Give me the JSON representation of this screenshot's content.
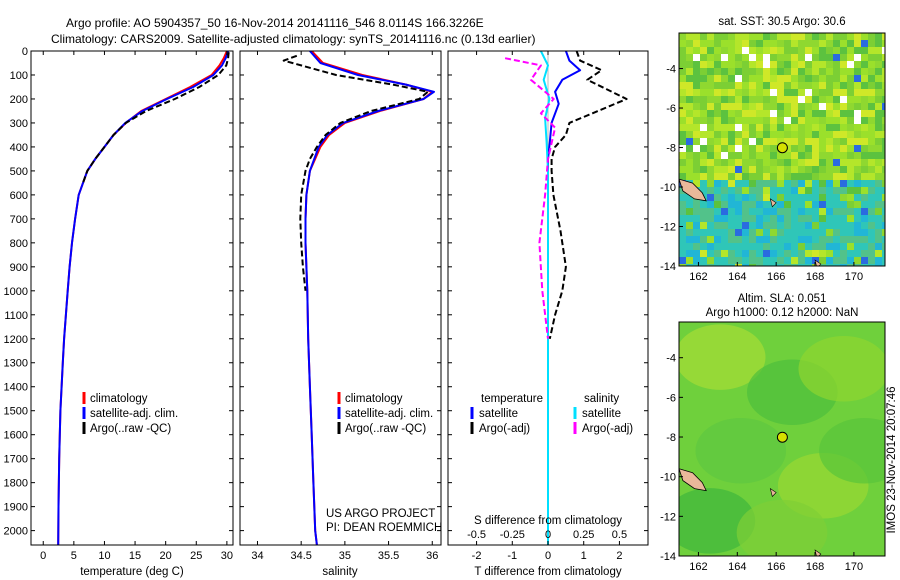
{
  "header": {
    "line1": "Argo profile: AO 5904357_50 16-Nov-2014 20141116_546 8.0114S 166.3226E",
    "line2": "Climatology: CARS2009. Satellite-adjusted climatology: synTS_20141116.nc (0.13d earlier)"
  },
  "colors": {
    "climatology": "#ff0000",
    "satellite": "#0000ff",
    "argo": "#000000",
    "satellite_salinity": "#00e0ff",
    "argo_salinity": "#ff00ff",
    "map_green": "#7fd32a",
    "map_cyan": "#26c7c9",
    "land": "#e9b89a",
    "float_marker": "#d6e000"
  },
  "icons": {
    "float_marker": "circle",
    "line_legend": "short-vertical-bar"
  },
  "chart_data": [
    {
      "type": "line",
      "panel": "temperature",
      "xlabel": "temperature (deg C)",
      "xlim": [
        -2,
        31
      ],
      "ylim": [
        0,
        2060
      ],
      "xticks": [
        0,
        5,
        10,
        15,
        20,
        25,
        30
      ],
      "yticks": [
        0,
        100,
        200,
        300,
        400,
        500,
        600,
        700,
        800,
        900,
        1000,
        1100,
        1200,
        1300,
        1400,
        1500,
        1600,
        1700,
        1800,
        1900,
        2000
      ],
      "y_reversed": true,
      "legend": [
        "climatology",
        "satellite-adj. clim.",
        "Argo(..raw -QC)"
      ],
      "legend_placement": "lower-center",
      "series": [
        {
          "name": "climatology",
          "color": "#ff0000",
          "style": "solid",
          "x": [
            30,
            29.5,
            28.8,
            27.5,
            24,
            20,
            16,
            13.5,
            11.5,
            10,
            8.5,
            7.2,
            6.5,
            5.8,
            5.2,
            4.7,
            4.3,
            4.0,
            3.7,
            3.4,
            3.2,
            3.0,
            2.8,
            2.7,
            2.6,
            2.5,
            2.45
          ],
          "y": [
            0,
            30,
            60,
            100,
            150,
            200,
            250,
            300,
            350,
            400,
            450,
            500,
            550,
            600,
            700,
            800,
            900,
            1000,
            1100,
            1200,
            1300,
            1400,
            1500,
            1600,
            1700,
            1900,
            2060
          ]
        },
        {
          "name": "satellite-adj. clim.",
          "color": "#0000ff",
          "style": "solid",
          "x": [
            30.2,
            29.8,
            29.2,
            27.8,
            24.5,
            20.2,
            16.2,
            13.4,
            11.5,
            10.0,
            8.5,
            7.2,
            6.5,
            5.8,
            5.2,
            4.7,
            4.3,
            4.0,
            3.7,
            3.4,
            3.2,
            3.0,
            2.8,
            2.7,
            2.6,
            2.5,
            2.45
          ],
          "y": [
            0,
            30,
            60,
            100,
            150,
            200,
            250,
            300,
            350,
            400,
            450,
            500,
            550,
            600,
            700,
            800,
            900,
            1000,
            1100,
            1200,
            1300,
            1400,
            1500,
            1600,
            1700,
            1900,
            2060
          ]
        },
        {
          "name": "Argo(..raw -QC)",
          "color": "#000000",
          "style": "dashed",
          "x": [
            30.3,
            30.2,
            29.9,
            28.6,
            25.5,
            21.5,
            16.8,
            13.5,
            11.5,
            10.0,
            8.5,
            7.2,
            6.5
          ],
          "y": [
            5,
            30,
            60,
            100,
            150,
            200,
            250,
            300,
            350,
            400,
            450,
            500,
            550
          ]
        }
      ]
    },
    {
      "type": "line",
      "panel": "salinity",
      "xlabel": "salinity",
      "xlim": [
        33.8,
        36.1
      ],
      "ylim": [
        0,
        2060
      ],
      "xticks": [
        34,
        34.5,
        35,
        35.5,
        36
      ],
      "y_reversed": true,
      "legend": [
        "climatology",
        "satellite-adj. clim.",
        "Argo(..raw -QC)"
      ],
      "legend_placement": "lower-right",
      "series": [
        {
          "name": "climatology",
          "color": "#ff0000",
          "style": "solid",
          "x": [
            34.62,
            34.75,
            35.2,
            35.7,
            36.0,
            35.9,
            35.4,
            35.0,
            34.82,
            34.72,
            34.66,
            34.6,
            34.56,
            34.55,
            34.55,
            34.56,
            34.57,
            34.58,
            34.6,
            34.62,
            34.64,
            34.66,
            34.68
          ],
          "y": [
            0,
            50,
            100,
            140,
            170,
            200,
            250,
            300,
            350,
            400,
            450,
            500,
            600,
            700,
            800,
            900,
            1000,
            1200,
            1400,
            1600,
            1800,
            2000,
            2060
          ]
        },
        {
          "name": "satellite-adj. clim.",
          "color": "#0000ff",
          "style": "solid",
          "x": [
            34.6,
            34.72,
            35.15,
            35.7,
            36.02,
            35.9,
            35.38,
            34.98,
            34.8,
            34.7,
            34.65,
            34.6,
            34.56,
            34.55,
            34.55,
            34.56,
            34.57,
            34.58,
            34.6,
            34.62,
            34.64,
            34.66,
            34.68
          ],
          "y": [
            0,
            50,
            100,
            140,
            170,
            200,
            250,
            300,
            350,
            400,
            450,
            500,
            600,
            700,
            800,
            900,
            1000,
            1200,
            1400,
            1600,
            1800,
            2000,
            2060
          ]
        },
        {
          "name": "Argo(..raw -QC)",
          "color": "#000000",
          "style": "dashed",
          "x": [
            34.45,
            34.3,
            34.9,
            35.55,
            35.95,
            35.85,
            35.3,
            34.95,
            34.78,
            34.68,
            34.6,
            34.55,
            34.5,
            34.49,
            34.5,
            34.52,
            34.55
          ],
          "y": [
            20,
            40,
            100,
            140,
            170,
            200,
            250,
            300,
            350,
            400,
            450,
            500,
            600,
            700,
            800,
            900,
            1000
          ]
        }
      ]
    },
    {
      "type": "line",
      "panel": "difference",
      "xlabel": "T difference from climatology",
      "xlabel_top": "S difference from climatology",
      "xlim": [
        -2.8,
        2.8
      ],
      "ylim": [
        0,
        2060
      ],
      "xticks": [
        -2,
        -1,
        0,
        1,
        2
      ],
      "xticks_s": [
        -0.5,
        -0.25,
        0,
        0.25,
        0.5
      ],
      "xticklabels_s": [
        "-0.5",
        "-0.25",
        "0",
        "0.25",
        "0.5"
      ],
      "y_reversed": true,
      "legend_headers": [
        "temperature",
        "salinity"
      ],
      "legend": [
        "satellite",
        "Argo(-adj)",
        "satellite",
        "Argo(-adj)"
      ],
      "series": [
        {
          "name": "satellite",
          "quantity": "temperature",
          "color": "#0000ff",
          "style": "solid",
          "x": [
            0.5,
            0.6,
            0.9,
            0.4,
            0.2,
            0.3,
            0.1,
            0.05,
            0,
            0,
            0,
            0,
            0
          ],
          "y": [
            0,
            40,
            80,
            120,
            170,
            220,
            300,
            380,
            450,
            600,
            1000,
            1500,
            2060
          ]
        },
        {
          "name": "Argo(-adj)",
          "quantity": "temperature",
          "color": "#000000",
          "style": "dashed",
          "x": [
            0.8,
            0.9,
            1.5,
            1.1,
            2.2,
            1.4,
            0.6,
            0.5,
            0.2,
            0.1,
            0.1,
            0.15,
            0.35,
            0.5,
            0.4,
            0.2,
            0.05
          ],
          "y": [
            0,
            40,
            80,
            120,
            200,
            250,
            300,
            350,
            400,
            450,
            500,
            600,
            750,
            900,
            1000,
            1100,
            1200
          ]
        },
        {
          "name": "satellite",
          "quantity": "salinity",
          "color": "#00e0ff",
          "style": "solid",
          "x": [
            -0.05,
            0,
            -0.03,
            0.01,
            -0.02,
            -0.01,
            0,
            0,
            0,
            0
          ],
          "y": [
            0,
            60,
            120,
            200,
            280,
            380,
            500,
            1000,
            1500,
            2060
          ]
        },
        {
          "name": "Argo(-adj)",
          "quantity": "salinity",
          "color": "#ff00ff",
          "style": "dashed",
          "x": [
            -0.3,
            -0.05,
            -0.12,
            0.04,
            -0.05,
            0.05,
            0,
            -0.02,
            -0.06,
            -0.04,
            0
          ],
          "y": [
            30,
            60,
            120,
            200,
            260,
            320,
            450,
            600,
            800,
            1000,
            1200
          ]
        }
      ]
    },
    {
      "type": "heatmap",
      "panel": "sst-map",
      "title": "sat. SST: 30.5 Argo: 30.6",
      "xlim": [
        161,
        171.6
      ],
      "ylim": [
        -14,
        -2.2
      ],
      "xticks": [
        162,
        164,
        166,
        168,
        170
      ],
      "yticks": [
        -4,
        -6,
        -8,
        -10,
        -12,
        -14
      ],
      "float_position": {
        "lon": 166.32,
        "lat": -8.01
      }
    },
    {
      "type": "heatmap",
      "panel": "sla-map",
      "title_line1": "Altim. SLA: 0.051",
      "title_line2": "Argo h1000: 0.12 h2000: NaN",
      "xlim": [
        161,
        171.6
      ],
      "ylim": [
        -14,
        -2.2
      ],
      "xticks": [
        162,
        164,
        166,
        168,
        170
      ],
      "yticks": [
        -4,
        -6,
        -8,
        -10,
        -12,
        -14
      ],
      "float_position": {
        "lon": 166.32,
        "lat": -8.01
      }
    }
  ],
  "footer": {
    "project": "US ARGO PROJECT",
    "pi": "PI: DEAN ROEMMICH",
    "side_stamp": "IMOS 23-Nov-2014 20:07:46"
  }
}
